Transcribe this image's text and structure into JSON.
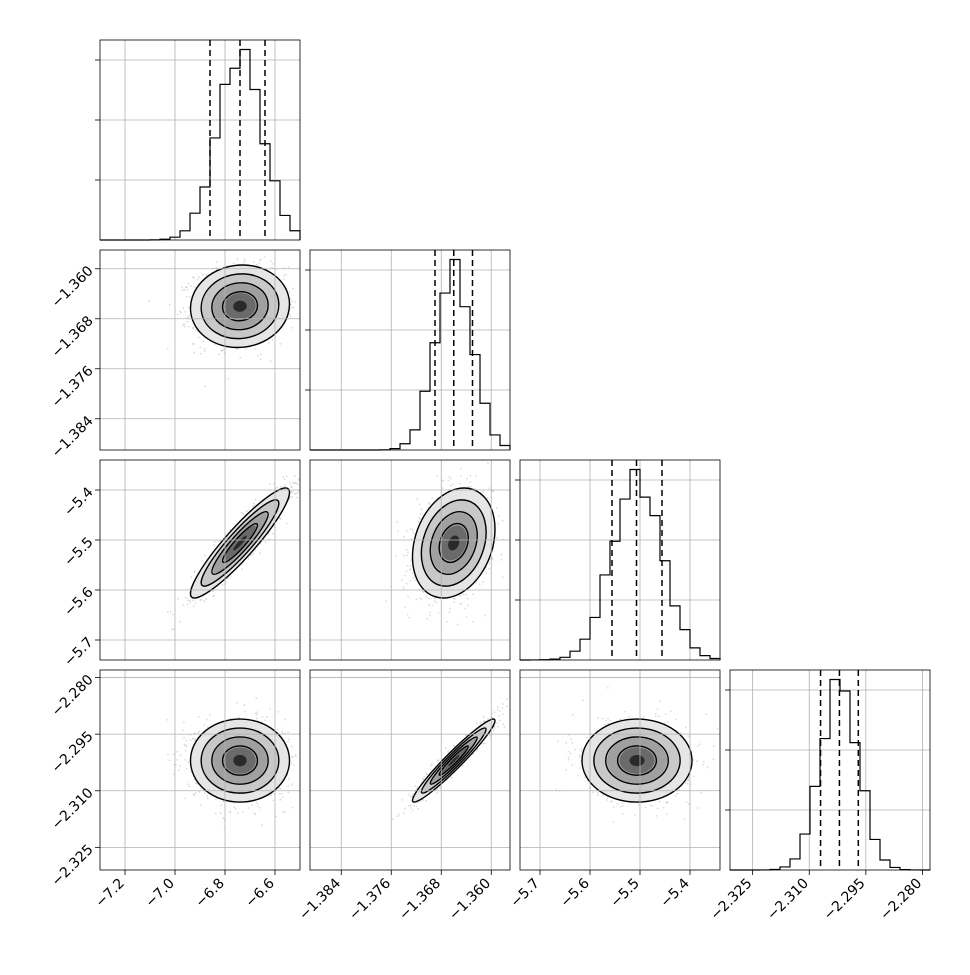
{
  "chart_data": {
    "type": "corner",
    "parameters": [
      {
        "range": [
          -7.3,
          -6.5
        ],
        "ticks": [
          "−7.2",
          "−7.0",
          "−6.8",
          "−6.6"
        ],
        "tick_values": [
          -7.2,
          -7.0,
          -6.8,
          -6.6
        ],
        "quantiles": [
          -6.86,
          -6.74,
          -6.64
        ],
        "mean": -6.74,
        "sd": 0.09
      },
      {
        "range": [
          -1.389,
          -1.357
        ],
        "ticks": [
          "−1.384",
          "−1.376",
          "−1.368",
          "−1.360"
        ],
        "tick_values": [
          -1.384,
          -1.376,
          -1.368,
          -1.36
        ],
        "quantiles": [
          -1.369,
          -1.366,
          -1.363
        ],
        "mean": -1.366,
        "sd": 0.003
      },
      {
        "range": [
          -5.74,
          -5.34
        ],
        "ticks": [
          "−5.7",
          "−5.6",
          "−5.5",
          "−5.4"
        ],
        "tick_values": [
          -5.7,
          -5.6,
          -5.5,
          -5.4
        ],
        "quantiles": [
          -5.556,
          -5.507,
          -5.456
        ],
        "mean": -5.506,
        "sd": 0.05
      },
      {
        "range": [
          -2.331,
          -2.278
        ],
        "ticks": [
          "−2.325",
          "−2.310",
          "−2.295",
          "−2.280"
        ],
        "tick_values": [
          -2.325,
          -2.31,
          -2.295,
          -2.28
        ],
        "quantiles": [
          -2.307,
          -2.302,
          -2.297
        ],
        "mean": -2.302,
        "sd": 0.005
      }
    ],
    "correlations": {
      "1-0": 0.05,
      "2-0": 0.92,
      "2-1": 0.25,
      "3-0": 0.0,
      "3-1": 0.96,
      "3-2": 0.0
    },
    "grid": true,
    "histogram_bins": 20,
    "contour_levels": [
      0.5,
      1.0,
      1.5,
      2.0
    ]
  }
}
